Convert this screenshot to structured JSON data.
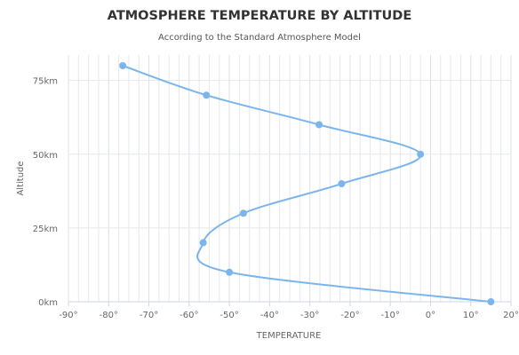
{
  "chart_data": {
    "type": "line",
    "title": "ATMOSPHERE TEMPERATURE BY ALTITUDE",
    "subtitle": "According to the Standard Atmosphere Model",
    "xlabel": "TEMPERATURE",
    "ylabel": "Altitude",
    "xlim": [
      -90,
      20
    ],
    "ylim": [
      0,
      80
    ],
    "x_ticks": [
      "-90°",
      "-80°",
      "-70°",
      "-60°",
      "-50°",
      "-40°",
      "-30°",
      "-20°",
      "-10°",
      "0°",
      "10°",
      "20°"
    ],
    "y_ticks": [
      "0km",
      "25km",
      "50km",
      "75km"
    ],
    "y_tick_values": [
      0,
      25,
      50,
      75
    ],
    "grid": "vertical",
    "series": [
      {
        "color": "#7cb5ec",
        "points": [
          {
            "temperature": 15,
            "altitude": 0
          },
          {
            "temperature": -50,
            "altitude": 10
          },
          {
            "temperature": -56.5,
            "altitude": 20
          },
          {
            "temperature": -46.5,
            "altitude": 30
          },
          {
            "temperature": -22.1,
            "altitude": 40
          },
          {
            "temperature": -2.5,
            "altitude": 50
          },
          {
            "temperature": -27.7,
            "altitude": 60
          },
          {
            "temperature": -55.7,
            "altitude": 70
          },
          {
            "temperature": -76.5,
            "altitude": 80
          }
        ]
      }
    ]
  }
}
